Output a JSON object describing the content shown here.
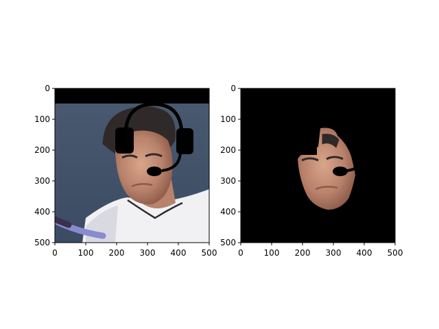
{
  "colors": {
    "figure_bg": "#ffffff",
    "axes_frame": "#000000",
    "mask": "#000000",
    "skin_light": "#d8a58a",
    "skin_mid": "#b9826b",
    "skin_dark": "#8c5a49",
    "hair": "#2f2a29",
    "bg_top": "#4a5a70",
    "bg_bottom": "#3b4b63",
    "shirt": "#f1f1f3",
    "shirt_shadow": "#c9ccd6",
    "collar": "#2b2b35",
    "racket": "#8a8ad0",
    "racket_dark": "#3a2f4f"
  },
  "panels": [
    {
      "name": "original-image-with-headset-overlay",
      "x_ticks": [
        0,
        100,
        200,
        300,
        400,
        500
      ],
      "y_ticks": [
        0,
        100,
        200,
        300,
        400,
        500
      ],
      "xlim": [
        0,
        500
      ],
      "ylim": [
        500,
        0
      ]
    },
    {
      "name": "masked-face-region",
      "x_ticks": [
        0,
        100,
        200,
        300,
        400,
        500
      ],
      "y_ticks": [
        0,
        100,
        200,
        300,
        400,
        500
      ],
      "xlim": [
        0,
        500
      ],
      "ylim": [
        500,
        0
      ]
    }
  ]
}
